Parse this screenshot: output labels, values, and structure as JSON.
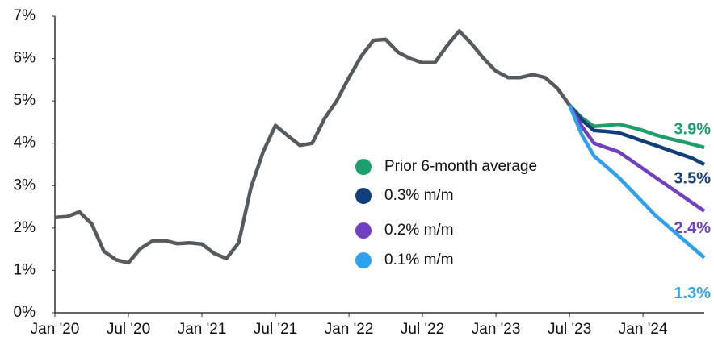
{
  "chart_data": {
    "type": "line",
    "x": [
      "2020-01",
      "2020-02",
      "2020-03",
      "2020-04",
      "2020-05",
      "2020-06",
      "2020-07",
      "2020-08",
      "2020-09",
      "2020-10",
      "2020-11",
      "2020-12",
      "2021-01",
      "2021-02",
      "2021-03",
      "2021-04",
      "2021-05",
      "2021-06",
      "2021-07",
      "2021-08",
      "2021-09",
      "2021-10",
      "2021-11",
      "2021-12",
      "2022-01",
      "2022-02",
      "2022-03",
      "2022-04",
      "2022-05",
      "2022-06",
      "2022-07",
      "2022-08",
      "2022-09",
      "2022-10",
      "2022-11",
      "2022-12",
      "2023-01",
      "2023-02",
      "2023-03",
      "2023-04",
      "2023-05",
      "2023-06",
      "2023-07",
      "2023-08",
      "2023-09",
      "2023-10",
      "2023-11",
      "2023-12",
      "2024-01",
      "2024-02",
      "2024-03",
      "2024-04",
      "2024-05",
      "2024-06"
    ],
    "xlim": [
      "2020-01",
      "2024-06"
    ],
    "xticks": [
      {
        "value": "2020-01",
        "label": "Jan '20"
      },
      {
        "value": "2020-07",
        "label": "Jul '20"
      },
      {
        "value": "2021-01",
        "label": "Jan '21"
      },
      {
        "value": "2021-07",
        "label": "Jul '21"
      },
      {
        "value": "2022-01",
        "label": "Jan '22"
      },
      {
        "value": "2022-07",
        "label": "Jul '22"
      },
      {
        "value": "2023-01",
        "label": "Jan '23"
      },
      {
        "value": "2023-07",
        "label": "Jul '23"
      },
      {
        "value": "2024-01",
        "label": "Jan '24"
      }
    ],
    "ylim": [
      0,
      7
    ],
    "yticks": [
      {
        "value": 0,
        "label": "0%"
      },
      {
        "value": 1,
        "label": "1%"
      },
      {
        "value": 2,
        "label": "2%"
      },
      {
        "value": 3,
        "label": "3%"
      },
      {
        "value": 4,
        "label": "4%"
      },
      {
        "value": 5,
        "label": "5%"
      },
      {
        "value": 6,
        "label": "6%"
      },
      {
        "value": 7,
        "label": "7%"
      }
    ],
    "legend": "center",
    "series": [
      {
        "color": "#555a5f",
        "values": [
          2.25,
          2.27,
          2.38,
          2.1,
          1.45,
          1.25,
          1.18,
          1.52,
          1.7,
          1.7,
          1.63,
          1.65,
          1.62,
          1.4,
          1.28,
          1.65,
          2.95,
          3.8,
          4.42,
          4.18,
          3.95,
          4.0,
          4.58,
          5.0,
          5.55,
          6.05,
          6.43,
          6.45,
          6.15,
          6.0,
          5.9,
          5.9,
          6.3,
          6.65,
          6.35,
          6.0,
          5.7,
          5.55,
          5.55,
          5.62,
          5.55,
          5.3,
          4.9,
          null,
          null,
          null,
          null,
          null,
          null,
          null,
          null,
          null,
          null,
          null
        ]
      },
      {
        "name": "Prior 6-month average",
        "color": "#1e9e6a",
        "values": [
          null,
          null,
          null,
          null,
          null,
          null,
          null,
          null,
          null,
          null,
          null,
          null,
          null,
          null,
          null,
          null,
          null,
          null,
          null,
          null,
          null,
          null,
          null,
          null,
          null,
          null,
          null,
          null,
          null,
          null,
          null,
          null,
          null,
          null,
          null,
          null,
          null,
          null,
          null,
          null,
          null,
          null,
          4.9,
          4.6,
          4.4,
          4.42,
          4.45,
          4.38,
          4.3,
          4.2,
          4.12,
          4.05,
          3.98,
          3.9
        ],
        "value_labels": [
          null,
          null,
          null,
          null,
          null,
          null,
          null,
          null,
          null,
          null,
          null,
          null,
          null,
          null,
          null,
          null,
          null,
          null,
          null,
          null,
          null,
          null,
          null,
          null,
          null,
          null,
          null,
          null,
          null,
          null,
          null,
          null,
          null,
          null,
          null,
          null,
          null,
          null,
          null,
          null,
          null,
          null,
          null,
          null,
          null,
          null,
          null,
          null,
          null,
          null,
          null,
          null,
          null,
          "3.9%"
        ]
      },
      {
        "name": "0.3% m/m",
        "color": "#123f7a",
        "values": [
          null,
          null,
          null,
          null,
          null,
          null,
          null,
          null,
          null,
          null,
          null,
          null,
          null,
          null,
          null,
          null,
          null,
          null,
          null,
          null,
          null,
          null,
          null,
          null,
          null,
          null,
          null,
          null,
          null,
          null,
          null,
          null,
          null,
          null,
          null,
          null,
          null,
          null,
          null,
          null,
          null,
          null,
          4.9,
          4.55,
          4.3,
          4.28,
          4.25,
          4.15,
          4.05,
          3.95,
          3.85,
          3.75,
          3.65,
          3.5
        ],
        "value_labels": [
          null,
          null,
          null,
          null,
          null,
          null,
          null,
          null,
          null,
          null,
          null,
          null,
          null,
          null,
          null,
          null,
          null,
          null,
          null,
          null,
          null,
          null,
          null,
          null,
          null,
          null,
          null,
          null,
          null,
          null,
          null,
          null,
          null,
          null,
          null,
          null,
          null,
          null,
          null,
          null,
          null,
          null,
          null,
          null,
          null,
          null,
          null,
          null,
          null,
          null,
          null,
          null,
          null,
          "3.5%"
        ]
      },
      {
        "name": "0.2% m/m",
        "color": "#7040c0",
        "values": [
          null,
          null,
          null,
          null,
          null,
          null,
          null,
          null,
          null,
          null,
          null,
          null,
          null,
          null,
          null,
          null,
          null,
          null,
          null,
          null,
          null,
          null,
          null,
          null,
          null,
          null,
          null,
          null,
          null,
          null,
          null,
          null,
          null,
          null,
          null,
          null,
          null,
          null,
          null,
          null,
          null,
          null,
          4.9,
          4.4,
          4.0,
          3.9,
          3.8,
          3.6,
          3.4,
          3.2,
          3.0,
          2.8,
          2.6,
          2.4
        ],
        "value_labels": [
          null,
          null,
          null,
          null,
          null,
          null,
          null,
          null,
          null,
          null,
          null,
          null,
          null,
          null,
          null,
          null,
          null,
          null,
          null,
          null,
          null,
          null,
          null,
          null,
          null,
          null,
          null,
          null,
          null,
          null,
          null,
          null,
          null,
          null,
          null,
          null,
          null,
          null,
          null,
          null,
          null,
          null,
          null,
          null,
          null,
          null,
          null,
          null,
          null,
          null,
          null,
          null,
          null,
          "2.4%"
        ]
      },
      {
        "name": "0.1% m/m",
        "color": "#2ea0ec",
        "values": [
          null,
          null,
          null,
          null,
          null,
          null,
          null,
          null,
          null,
          null,
          null,
          null,
          null,
          null,
          null,
          null,
          null,
          null,
          null,
          null,
          null,
          null,
          null,
          null,
          null,
          null,
          null,
          null,
          null,
          null,
          null,
          null,
          null,
          null,
          null,
          null,
          null,
          null,
          null,
          null,
          null,
          null,
          4.9,
          4.2,
          3.7,
          3.45,
          3.2,
          2.9,
          2.6,
          2.3,
          2.05,
          1.8,
          1.55,
          1.3
        ],
        "value_labels": [
          null,
          null,
          null,
          null,
          null,
          null,
          null,
          null,
          null,
          null,
          null,
          null,
          null,
          null,
          null,
          null,
          null,
          null,
          null,
          null,
          null,
          null,
          null,
          null,
          null,
          null,
          null,
          null,
          null,
          null,
          null,
          null,
          null,
          null,
          null,
          null,
          null,
          null,
          null,
          null,
          null,
          null,
          null,
          null,
          null,
          null,
          null,
          null,
          null,
          null,
          null,
          null,
          null,
          "1.3%"
        ]
      }
    ]
  }
}
